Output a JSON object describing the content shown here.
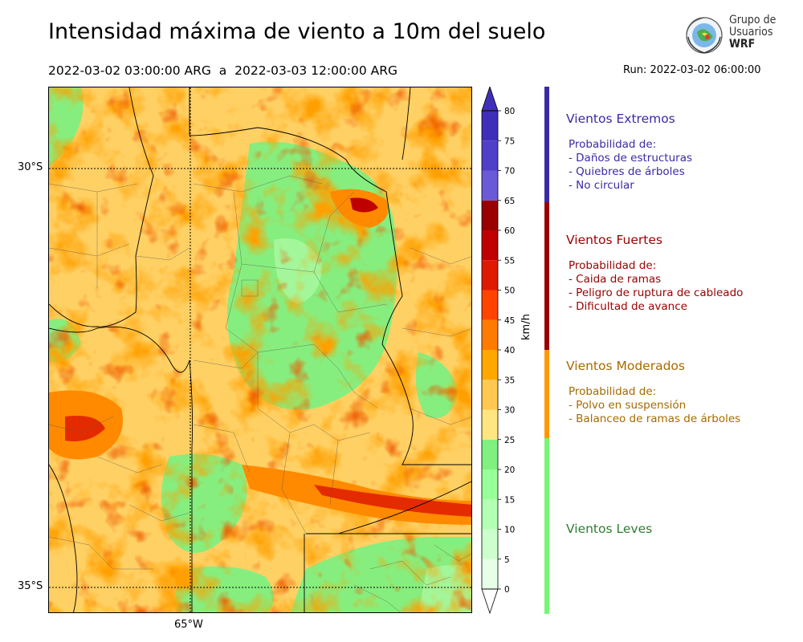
{
  "title": "Intensidad máxima de viento a 10m del suelo",
  "subtitle": "2022-03-02 03:00:00 ARG  a  2022-03-03 12:00:00 ARG",
  "run_label": "Run: 2022-03-02 06:00:00",
  "logo": {
    "line1": "Grupo de",
    "line2": "Usuarios",
    "line3": "WRF"
  },
  "map": {
    "lat_labels": [
      "30°S",
      "35°S"
    ],
    "lon_labels": [
      "65°W"
    ]
  },
  "colorbar": {
    "unit": "km/h",
    "levels": [
      0,
      5,
      10,
      15,
      20,
      25,
      30,
      35,
      40,
      45,
      50,
      55,
      60,
      65,
      70,
      75,
      80
    ],
    "tick_labels": [
      "0",
      "5",
      "10",
      "15",
      "20",
      "25",
      "30",
      "35",
      "40",
      "45",
      "50",
      "55",
      "60",
      "65",
      "70",
      "75",
      "80"
    ],
    "colors": [
      "#e6ffe6",
      "#ccffcc",
      "#b3ffb3",
      "#99ff99",
      "#80f080",
      "#ffe680",
      "#ffc850",
      "#ffa800",
      "#ff7a00",
      "#ff4400",
      "#e01a00",
      "#c00000",
      "#9a0000",
      "#6a5ad8",
      "#5040c8",
      "#3f2fb8"
    ]
  },
  "categories": [
    {
      "title": "Vientos Extremos",
      "color": "#3b2aa6",
      "bar_color": "#3b2aa6",
      "lines": [
        "Probabilidad de:",
        "- Daños de estructuras",
        "- Quiebres de árboles",
        "- No circular"
      ]
    },
    {
      "title": "Vientos Fuertes",
      "color": "#9a0000",
      "bar_color": "#9a0000",
      "lines": [
        "Probabilidad de:",
        "- Caida de ramas",
        "- Peligro de ruptura de cableado",
        "- Dificultad de avance"
      ]
    },
    {
      "title": "Vientos Moderados",
      "color": "#a66a00",
      "bar_color": "#ff9900",
      "lines": [
        "Probabilidad de:",
        "- Polvo en suspensión",
        "- Balanceo de ramas de árboles"
      ]
    },
    {
      "title": "Vientos Leves",
      "color": "#2e7d32",
      "bar_color": "#77f577",
      "lines": []
    }
  ]
}
